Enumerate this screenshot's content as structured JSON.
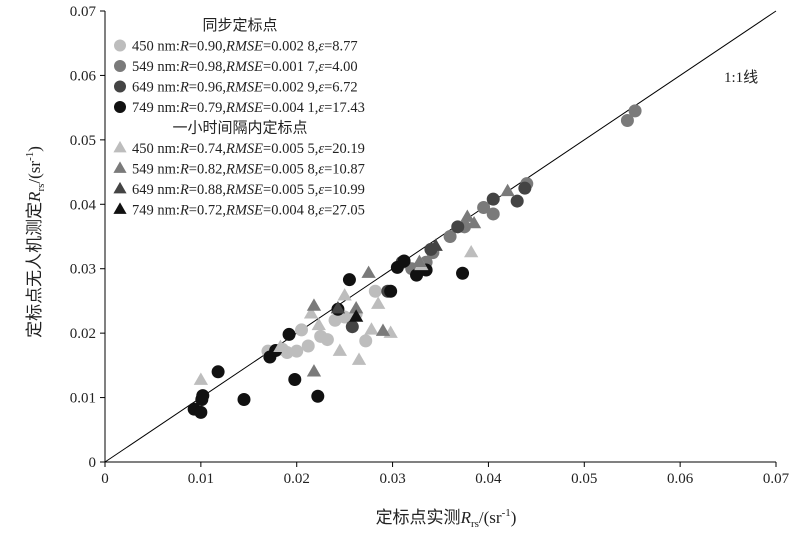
{
  "chart_data": {
    "type": "scatter",
    "xlabel": {
      "main": "定标点实测",
      "var": "R",
      "sub": "rs",
      "unit_open": "/(sr",
      "unit_sup": "-1",
      "unit_close": ")"
    },
    "ylabel": {
      "main": "定标点无人机测定",
      "var": "R",
      "sub": "rs",
      "unit_open": "/(sr",
      "unit_sup": "-1",
      "unit_close": ")"
    },
    "xlim": [
      0,
      0.07
    ],
    "ylim": [
      0,
      0.07
    ],
    "xticks": [
      "0",
      "0.01",
      "0.02",
      "0.03",
      "0.04",
      "0.05",
      "0.06",
      "0.07"
    ],
    "yticks": [
      "0",
      "0.01",
      "0.02",
      "0.03",
      "0.04",
      "0.05",
      "0.06",
      "0.07"
    ],
    "grid": false,
    "legend_position": "top-left",
    "reference_line": {
      "label": "1:1线",
      "slope": 1,
      "intercept": 0
    },
    "legend_groups": [
      {
        "title": "同步定标点",
        "entries": [
          {
            "marker": "circle",
            "color": "#bdbdbd",
            "wl": "450 nm:",
            "R": "0.90",
            "RMSE": "0.002 8",
            "eps": "8.77"
          },
          {
            "marker": "circle",
            "color": "#7a7a7a",
            "wl": "549 nm:",
            "R": "0.98",
            "RMSE": "0.001 7",
            "eps": "4.00"
          },
          {
            "marker": "circle",
            "color": "#444444",
            "wl": "649 nm:",
            "R": "0.96",
            "RMSE": "0.002 9",
            "eps": "6.72"
          },
          {
            "marker": "circle",
            "color": "#111111",
            "wl": "749 nm:",
            "R": "0.79",
            "RMSE": "0.004 1",
            "eps": "17.43"
          }
        ]
      },
      {
        "title": "一小时间隔内定标点",
        "entries": [
          {
            "marker": "triangle",
            "color": "#bdbdbd",
            "wl": "450 nm:",
            "R": "0.74",
            "RMSE": "0.005 5",
            "eps": "20.19"
          },
          {
            "marker": "triangle",
            "color": "#7a7a7a",
            "wl": "549 nm:",
            "R": "0.82",
            "RMSE": "0.005 8",
            "eps": "10.87"
          },
          {
            "marker": "triangle",
            "color": "#444444",
            "wl": "649 nm:",
            "R": "0.88",
            "RMSE": "0.005 5",
            "eps": "10.99"
          },
          {
            "marker": "triangle",
            "color": "#111111",
            "wl": "749 nm:",
            "R": "0.72",
            "RMSE": "0.004 8",
            "eps": "27.05"
          }
        ]
      }
    ],
    "series": [
      {
        "marker": "circle",
        "color": "#bdbdbd",
        "points": [
          [
            0.017,
            0.0172
          ],
          [
            0.0185,
            0.0175
          ],
          [
            0.019,
            0.017
          ],
          [
            0.02,
            0.0172
          ],
          [
            0.0205,
            0.0205
          ],
          [
            0.0212,
            0.018
          ],
          [
            0.0225,
            0.0195
          ],
          [
            0.0232,
            0.019
          ],
          [
            0.024,
            0.022
          ],
          [
            0.025,
            0.0225
          ],
          [
            0.0262,
            0.023
          ],
          [
            0.0272,
            0.0188
          ],
          [
            0.0282,
            0.0265
          ]
        ]
      },
      {
        "marker": "circle",
        "color": "#7a7a7a",
        "points": [
          [
            0.032,
            0.03
          ],
          [
            0.0335,
            0.031
          ],
          [
            0.0342,
            0.0325
          ],
          [
            0.036,
            0.035
          ],
          [
            0.0375,
            0.0365
          ],
          [
            0.0395,
            0.0395
          ],
          [
            0.0405,
            0.0385
          ],
          [
            0.044,
            0.0432
          ],
          [
            0.0545,
            0.053
          ],
          [
            0.0553,
            0.0545
          ]
        ]
      },
      {
        "marker": "circle",
        "color": "#444444",
        "points": [
          [
            0.0258,
            0.021
          ],
          [
            0.0295,
            0.0265
          ],
          [
            0.031,
            0.031
          ],
          [
            0.034,
            0.033
          ],
          [
            0.0368,
            0.0365
          ],
          [
            0.0405,
            0.0408
          ],
          [
            0.043,
            0.0405
          ],
          [
            0.0438,
            0.0425
          ]
        ]
      },
      {
        "marker": "circle",
        "color": "#111111",
        "points": [
          [
            0.0093,
            0.0082
          ],
          [
            0.01,
            0.0077
          ],
          [
            0.0101,
            0.0097
          ],
          [
            0.0102,
            0.0103
          ],
          [
            0.0118,
            0.014
          ],
          [
            0.0145,
            0.0097
          ],
          [
            0.0172,
            0.0163
          ],
          [
            0.0178,
            0.0173
          ],
          [
            0.0192,
            0.0198
          ],
          [
            0.0198,
            0.0128
          ],
          [
            0.0222,
            0.0102
          ],
          [
            0.0243,
            0.0237
          ],
          [
            0.0255,
            0.0283
          ],
          [
            0.0298,
            0.0265
          ],
          [
            0.0305,
            0.0302
          ],
          [
            0.0312,
            0.0312
          ],
          [
            0.0325,
            0.029
          ],
          [
            0.0335,
            0.0298
          ],
          [
            0.0373,
            0.0293
          ]
        ]
      },
      {
        "marker": "triangle",
        "color": "#bdbdbd",
        "points": [
          [
            0.01,
            0.0127
          ],
          [
            0.0183,
            0.0178
          ],
          [
            0.0215,
            0.023
          ],
          [
            0.0223,
            0.0212
          ],
          [
            0.0245,
            0.0172
          ],
          [
            0.025,
            0.0258
          ],
          [
            0.0265,
            0.0158
          ],
          [
            0.0278,
            0.0205
          ],
          [
            0.0285,
            0.0245
          ],
          [
            0.0298,
            0.02
          ],
          [
            0.033,
            0.0305
          ],
          [
            0.0382,
            0.0325
          ]
        ]
      },
      {
        "marker": "triangle",
        "color": "#7a7a7a",
        "points": [
          [
            0.0218,
            0.014
          ],
          [
            0.0218,
            0.0242
          ],
          [
            0.0262,
            0.0238
          ],
          [
            0.0275,
            0.0293
          ],
          [
            0.029,
            0.0203
          ],
          [
            0.0328,
            0.031
          ],
          [
            0.0378,
            0.038
          ],
          [
            0.0385,
            0.037
          ],
          [
            0.042,
            0.042
          ]
        ]
      },
      {
        "marker": "triangle",
        "color": "#444444",
        "points": [
          [
            0.0243,
            0.0238
          ],
          [
            0.0345,
            0.0335
          ]
        ]
      },
      {
        "marker": "triangle",
        "color": "#111111",
        "points": [
          [
            0.0262,
            0.0225
          ]
        ]
      }
    ]
  }
}
